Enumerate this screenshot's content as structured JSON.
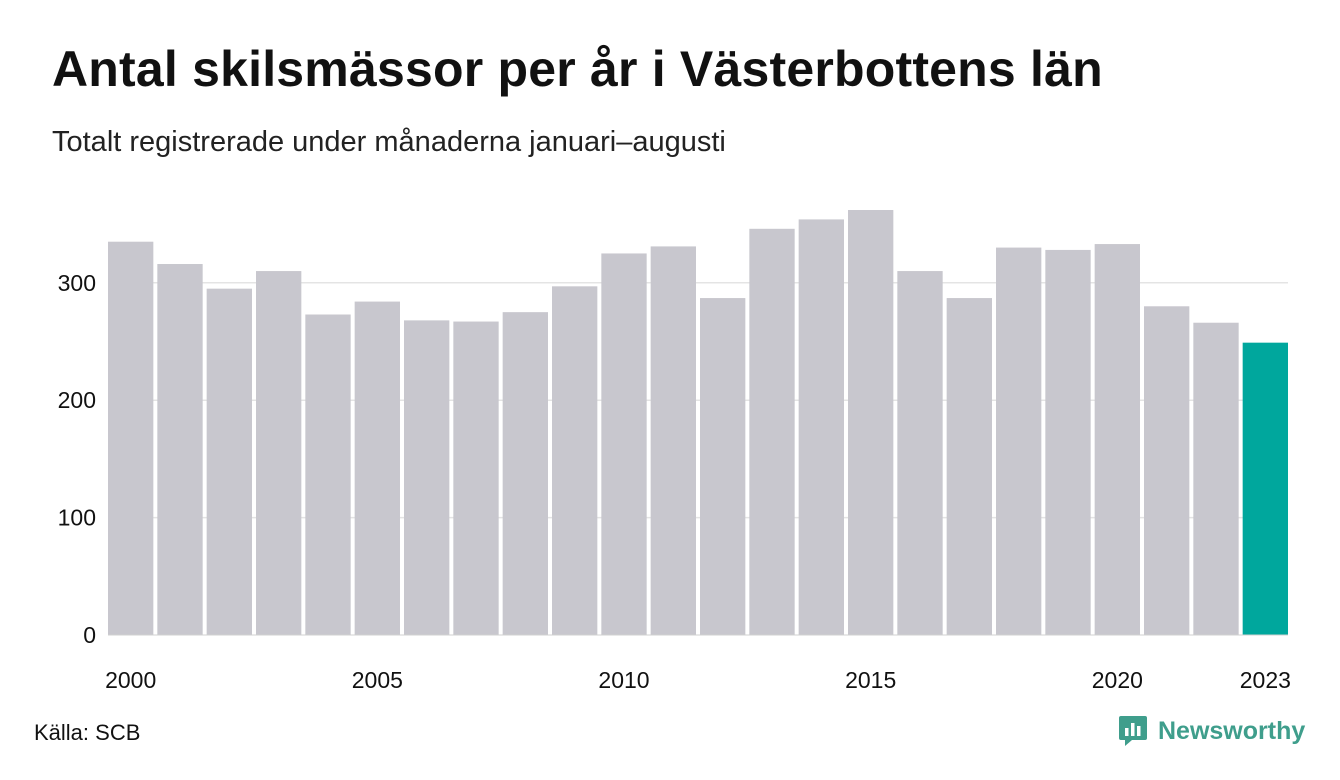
{
  "header": {
    "title": "Antal skilsmässor per år i Västerbottens län",
    "subtitle": "Totalt registrerade under månaderna januari–augusti"
  },
  "footer": {
    "source": "Källa: SCB",
    "brand": "Newsworthy",
    "brand_icon": "newsworthy-logo-icon"
  },
  "colors": {
    "bar": "#c8c7ce",
    "highlight": "#00a79d",
    "grid": "#e4e4e4",
    "brand": "#3f9e8c"
  },
  "chart_data": {
    "type": "bar",
    "categories": [
      "2000",
      "2001",
      "2002",
      "2003",
      "2004",
      "2005",
      "2006",
      "2007",
      "2008",
      "2009",
      "2010",
      "2011",
      "2012",
      "2013",
      "2014",
      "2015",
      "2016",
      "2017",
      "2018",
      "2019",
      "2020",
      "2021",
      "2022",
      "2023"
    ],
    "values": [
      335,
      316,
      295,
      310,
      273,
      284,
      268,
      267,
      275,
      297,
      325,
      331,
      287,
      346,
      354,
      362,
      310,
      287,
      330,
      328,
      333,
      280,
      266,
      249
    ],
    "highlight_index": 23,
    "x_tick_labels": [
      "2000",
      "2005",
      "2010",
      "2015",
      "2020",
      "2023"
    ],
    "y_ticks": [
      0,
      100,
      200,
      300
    ],
    "ylim": [
      0,
      380
    ],
    "grid": true,
    "title": "Antal skilsmässor per år i Västerbottens län",
    "xlabel": "",
    "ylabel": ""
  }
}
